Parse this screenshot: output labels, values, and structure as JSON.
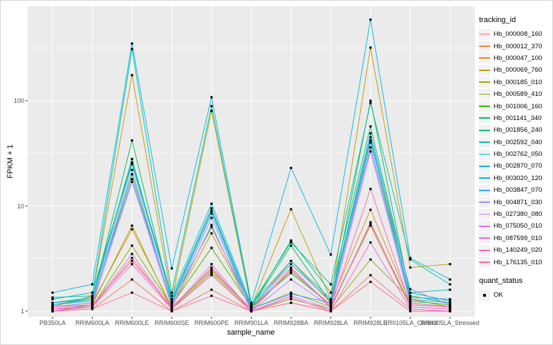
{
  "chart_data": {
    "type": "line",
    "title": "",
    "xlabel": "sample_name",
    "ylabel": "FPKM + 1",
    "y_scale": "log10",
    "y_ticks": [
      1,
      10,
      100
    ],
    "ylim": [
      0.9,
      790
    ],
    "grid": "on",
    "legend_position": "right",
    "legend_title": "tracking_id",
    "quant_legend": {
      "title": "quant_status",
      "items": [
        "OK"
      ]
    },
    "marker": "black-square",
    "panel_bg": "#EBEBEB",
    "grid_color": "#FFFFFF",
    "axis_text_color": "#4D4D4D",
    "categories": [
      "PB350LA",
      "RRIM600LA",
      "RRIM600LE",
      "RRIM600SE",
      "RRIM600PE",
      "RRIM901LA",
      "RRIM928BA",
      "RRIM928LA",
      "RRIM928LE",
      "RRII105LA_Control",
      "RRII105LA_Stressed"
    ],
    "series": [
      {
        "name": "Hb_000008_160",
        "color": "#F8766D",
        "values": [
          1.0,
          1.05,
          2.0,
          1.0,
          1.6,
          1.0,
          1.2,
          1.0,
          2.2,
          1.05,
          1.0
        ]
      },
      {
        "name": "Hb_000012_370",
        "color": "#EA8331",
        "values": [
          1.05,
          1.1,
          3.2,
          1.05,
          2.6,
          1.0,
          2.5,
          1.1,
          6.5,
          1.1,
          1.05
        ]
      },
      {
        "name": "Hb_000047_100",
        "color": "#D89000",
        "values": [
          1.1,
          1.2,
          6.0,
          1.1,
          5.5,
          1.05,
          3.0,
          1.2,
          9.2,
          1.2,
          1.1
        ]
      },
      {
        "name": "Hb_000069_760",
        "color": "#C09B00",
        "values": [
          1.1,
          1.4,
          175,
          1.3,
          80,
          1.1,
          9.3,
          1.3,
          320,
          2.6,
          2.8
        ]
      },
      {
        "name": "Hb_000185_010",
        "color": "#A3A500",
        "values": [
          1.0,
          1.15,
          6.5,
          1.05,
          2.3,
          1.0,
          1.3,
          1.05,
          3.1,
          1.3,
          1.1
        ]
      },
      {
        "name": "Hb_000589_410",
        "color": "#7CAE00",
        "values": [
          1.05,
          1.1,
          4.2,
          1.1,
          2.4,
          1.05,
          1.5,
          1.1,
          6.8,
          1.15,
          1.1
        ]
      },
      {
        "name": "Hb_001006_160",
        "color": "#39B600",
        "values": [
          1.1,
          1.2,
          20,
          1.15,
          4.0,
          1.1,
          2.3,
          1.15,
          42,
          1.25,
          1.15
        ]
      },
      {
        "name": "Hb_001141_340",
        "color": "#00BB4E",
        "values": [
          1.15,
          1.3,
          42,
          1.2,
          6.3,
          1.1,
          4.2,
          1.2,
          100,
          1.4,
          1.2
        ]
      },
      {
        "name": "Hb_001856_240",
        "color": "#00BF7D",
        "values": [
          1.2,
          1.35,
          28,
          1.25,
          9.0,
          1.1,
          4.7,
          1.5,
          57,
          1.5,
          1.25
        ]
      },
      {
        "name": "Hb_002592_040",
        "color": "#00C1A3",
        "values": [
          1.35,
          1.4,
          310,
          1.5,
          89,
          1.15,
          4.5,
          1.8,
          95,
          3.1,
          1.8
        ]
      },
      {
        "name": "Hb_002762_050",
        "color": "#00BFC4",
        "values": [
          1.3,
          1.5,
          26,
          1.4,
          10.5,
          1.15,
          3.0,
          1.3,
          49,
          1.5,
          1.6
        ]
      },
      {
        "name": "Hb_002870_070",
        "color": "#00BAE0",
        "values": [
          1.5,
          1.8,
          350,
          2.55,
          108,
          1.2,
          23.0,
          3.45,
          590,
          3.2,
          2.0
        ]
      },
      {
        "name": "Hb_003020_120",
        "color": "#00B0F6",
        "values": [
          1.2,
          1.3,
          25,
          1.3,
          9.5,
          1.1,
          2.8,
          1.25,
          45,
          1.35,
          1.3
        ]
      },
      {
        "name": "Hb_003847_070",
        "color": "#35A2FF",
        "values": [
          1.15,
          1.25,
          18,
          1.2,
          8.5,
          1.05,
          1.46,
          1.2,
          36,
          1.3,
          1.2
        ]
      },
      {
        "name": "Hb_004871_030",
        "color": "#9590FF",
        "values": [
          1.1,
          1.2,
          22,
          1.15,
          7.7,
          1.05,
          2.4,
          1.15,
          40,
          1.62,
          1.15
        ]
      },
      {
        "name": "Hb_027380_080",
        "color": "#C77CFF",
        "values": [
          1.05,
          1.15,
          17,
          1.1,
          6.6,
          1.0,
          2.0,
          1.1,
          33,
          1.2,
          1.1
        ]
      },
      {
        "name": "Hb_075050_010",
        "color": "#E76BF3",
        "values": [
          1.05,
          1.1,
          3.5,
          1.05,
          2.8,
          1.0,
          1.4,
          1.05,
          7.0,
          1.1,
          1.05
        ]
      },
      {
        "name": "Hb_087599_010",
        "color": "#FA62DB",
        "values": [
          1.0,
          1.1,
          2.8,
          1.05,
          2.2,
          1.0,
          1.35,
          1.0,
          4.5,
          1.05,
          1.0
        ]
      },
      {
        "name": "Hb_140249_020",
        "color": "#FF62BC",
        "values": [
          1.1,
          1.15,
          3.0,
          1.1,
          2.5,
          1.05,
          2.6,
          1.1,
          14.5,
          1.15,
          1.1
        ]
      },
      {
        "name": "Hb_176135_010",
        "color": "#FF6A98",
        "values": [
          1.0,
          1.05,
          1.5,
          1.0,
          1.4,
          1.0,
          1.2,
          1.0,
          1.9,
          1.0,
          1.0
        ]
      }
    ]
  }
}
